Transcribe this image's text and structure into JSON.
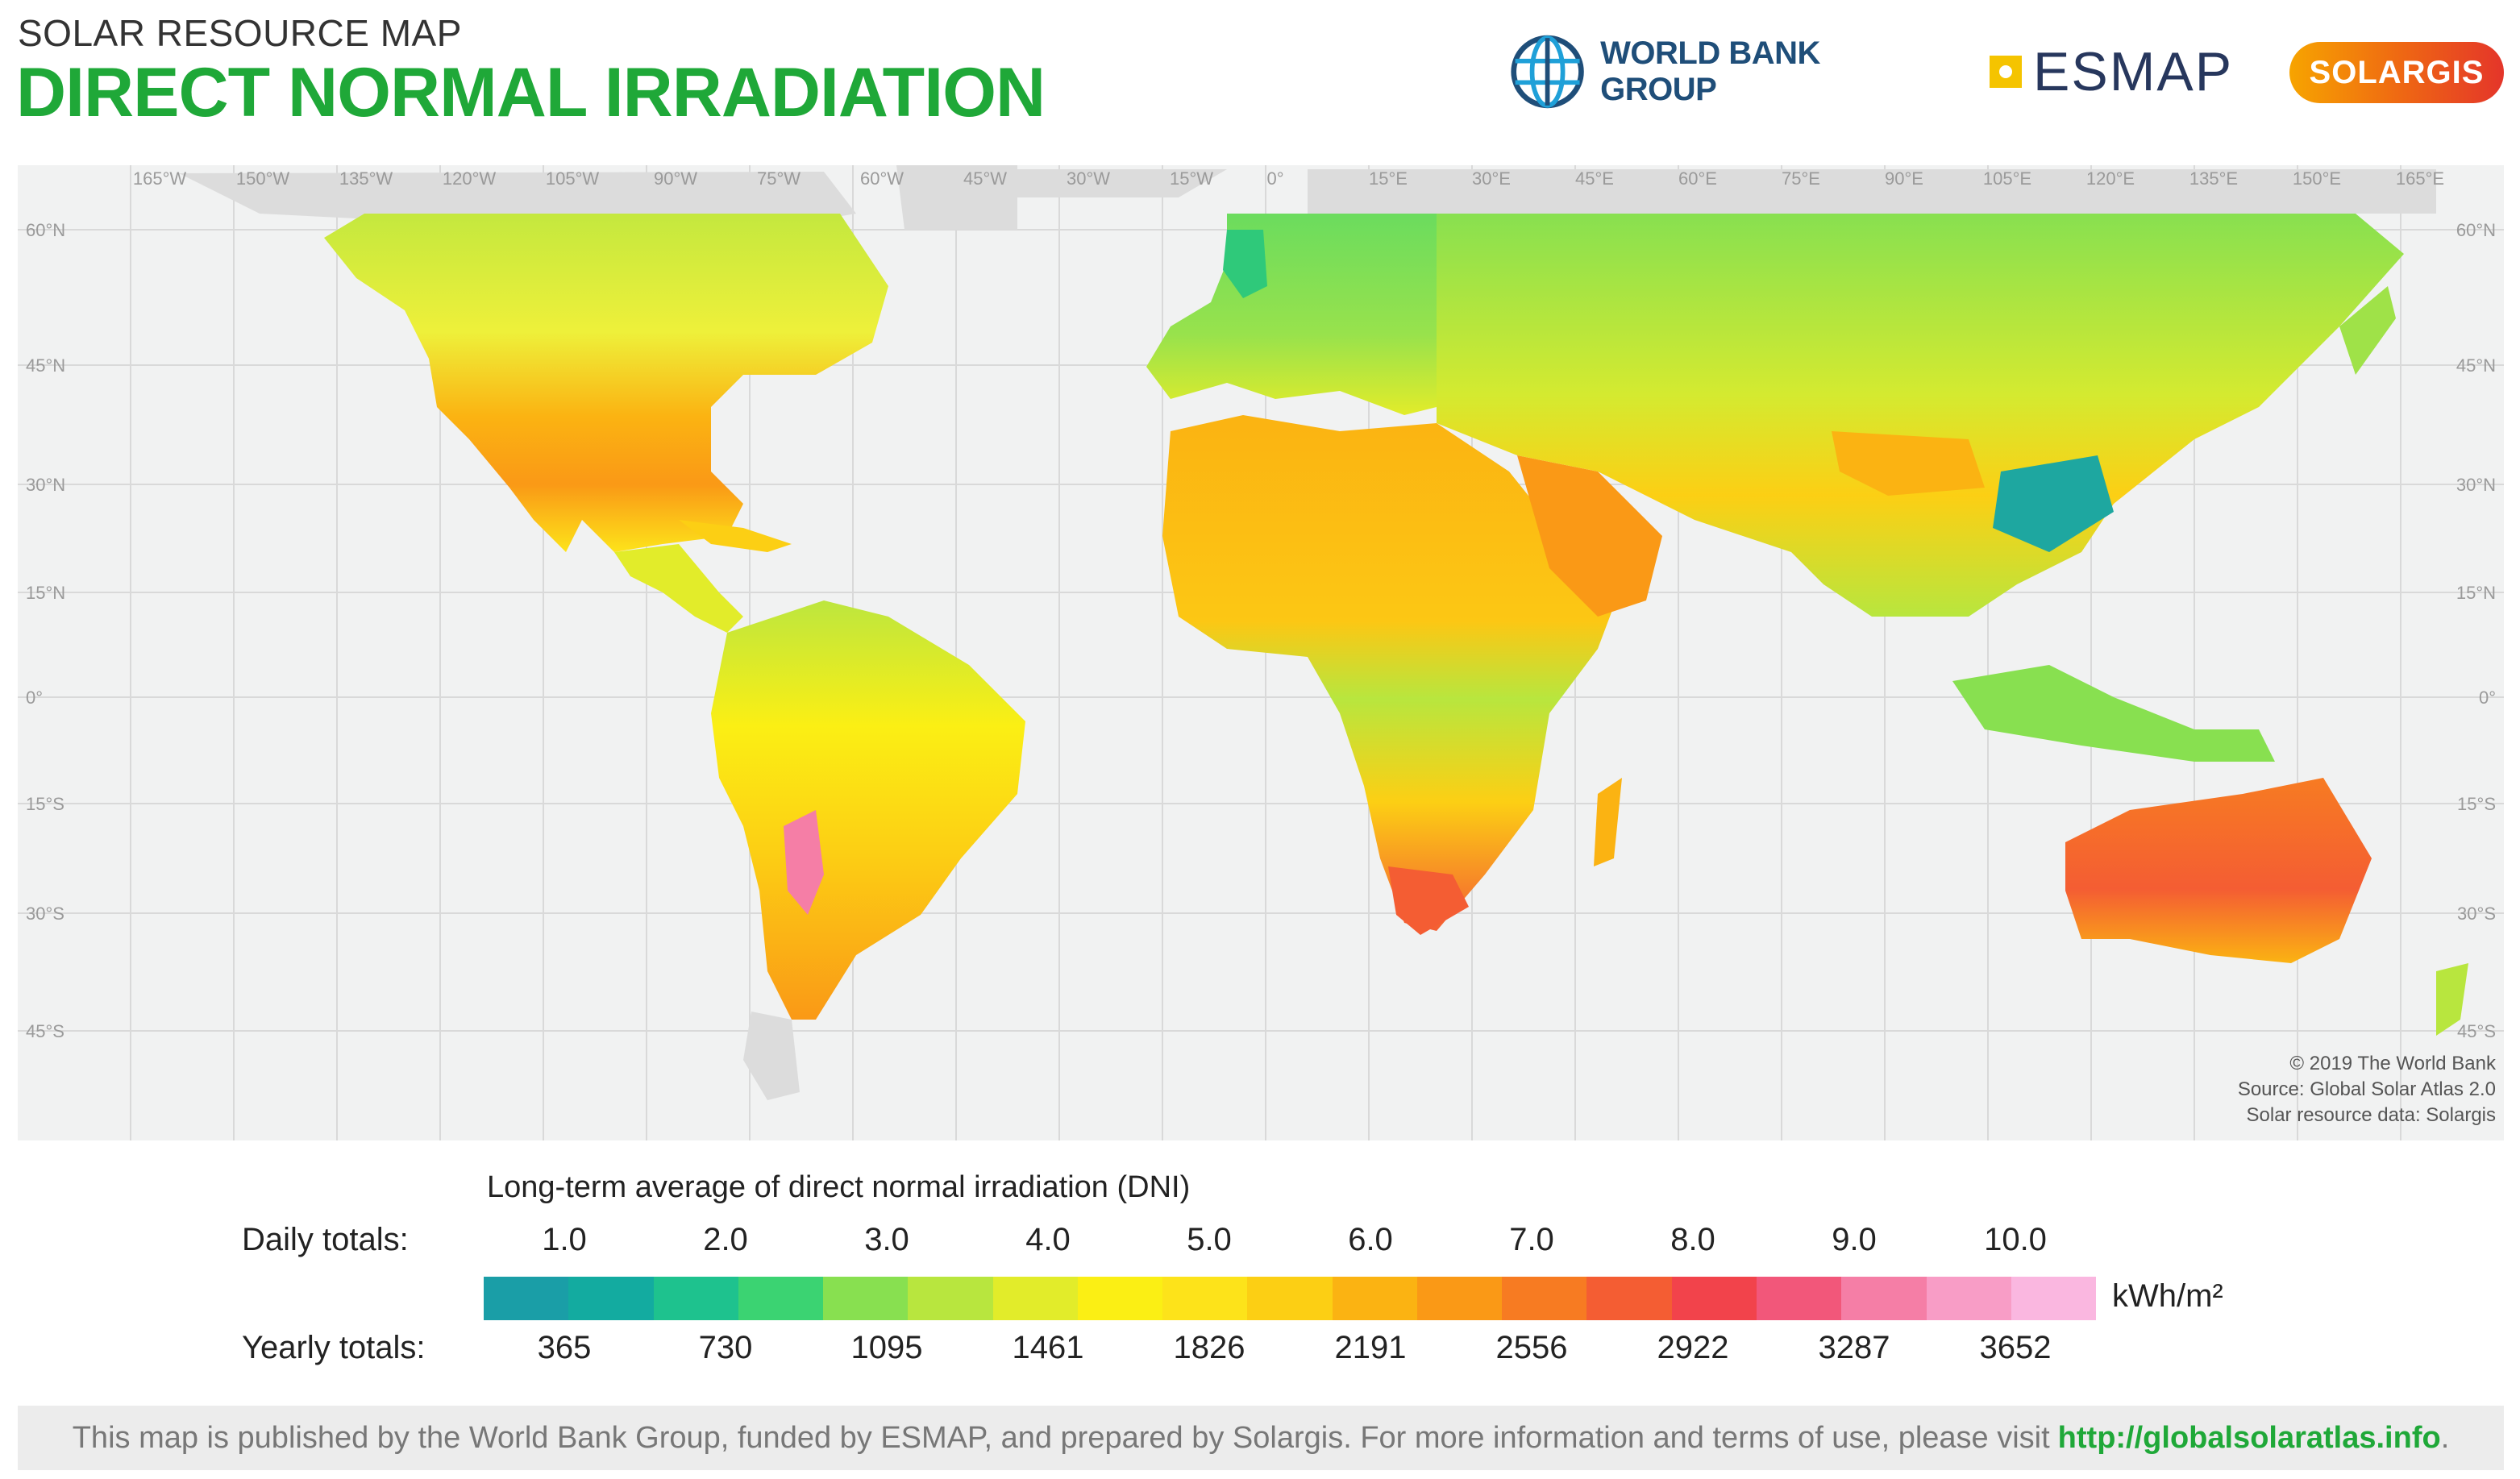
{
  "header": {
    "subtitle": "SOLAR RESOURCE MAP",
    "title": "DIRECT NORMAL IRRADIATION"
  },
  "logos": {
    "world_bank": "WORLD BANK GROUP",
    "esmap": "ESMAP",
    "solargis": "SOLARGIS"
  },
  "map": {
    "longitude_labels": [
      "165°W",
      "150°W",
      "135°W",
      "120°W",
      "105°W",
      "90°W",
      "75°W",
      "60°W",
      "45°W",
      "30°W",
      "15°W",
      "0°",
      "15°E",
      "30°E",
      "45°E",
      "60°E",
      "75°E",
      "90°E",
      "105°E",
      "120°E",
      "135°E",
      "150°E",
      "165°E"
    ],
    "latitude_labels": [
      "60°N",
      "45°N",
      "30°N",
      "15°N",
      "0°",
      "15°S",
      "30°S",
      "45°S"
    ],
    "credits": [
      "© 2019 The World Bank",
      "Source: Global Solar Atlas 2.0",
      "Solar resource data: Solargis"
    ],
    "ocean_color": "#f1f2f2",
    "gridline_color": "#d6d6d6"
  },
  "legend": {
    "title": "Long-term average of direct normal irradiation (DNI)",
    "daily_label": "Daily totals:",
    "yearly_label": "Yearly totals:",
    "daily_values": [
      "1.0",
      "2.0",
      "3.0",
      "4.0",
      "5.0",
      "6.0",
      "7.0",
      "8.0",
      "9.0",
      "10.0"
    ],
    "yearly_values": [
      "365",
      "730",
      "1095",
      "1461",
      "1826",
      "2191",
      "2556",
      "2922",
      "3287",
      "3652"
    ],
    "unit": "kWh/m²",
    "colors": [
      "#1a9ea7",
      "#13aba0",
      "#1ec28e",
      "#3bd372",
      "#88e050",
      "#b8e63e",
      "#e2ec2a",
      "#fbef14",
      "#fde31a",
      "#fccf14",
      "#fbb312",
      "#fa9916",
      "#f77b22",
      "#f45d33",
      "#f2434b",
      "#f2577a",
      "#f57ea6",
      "#f89dc6",
      "#fab7e0"
    ]
  },
  "footer": {
    "text": "This map is published by the World Bank Group, funded by ESMAP, and prepared by Solargis. For more information and terms of use, please visit",
    "link": "http://globalsolaratlas.info",
    "end": "."
  }
}
